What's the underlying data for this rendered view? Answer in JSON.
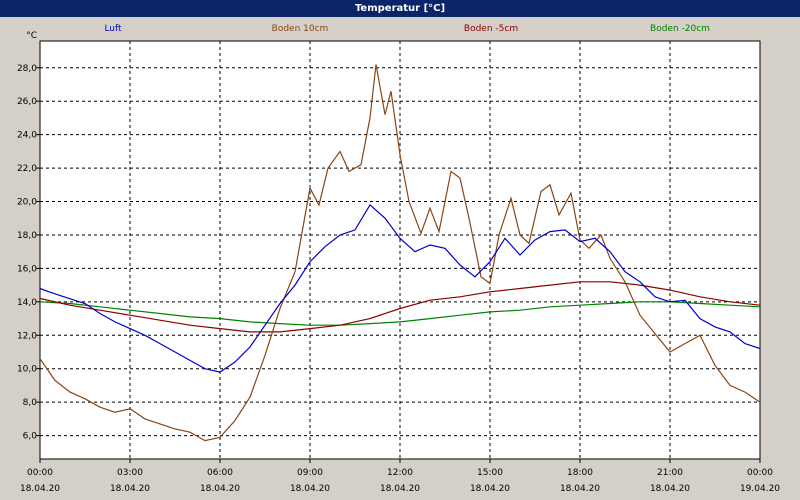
{
  "window": {
    "title": "Temperatur [°C]"
  },
  "chart_data": {
    "type": "line",
    "title": "Temperatur [°C]",
    "ylabel": "°C",
    "xlabel": "",
    "ylim": [
      4.6,
      29.6
    ],
    "xlim": [
      0,
      24
    ],
    "grid": true,
    "legend_position": "top",
    "y_ticks": [
      "6,0",
      "8,0",
      "10,0",
      "12,0",
      "14,0",
      "16,0",
      "18,0",
      "20,0",
      "22,0",
      "24,0",
      "26,0",
      "28,0"
    ],
    "x_ticks": [
      {
        "time": "00:00",
        "date": "18.04.20"
      },
      {
        "time": "03:00",
        "date": "18.04.20"
      },
      {
        "time": "06:00",
        "date": "18.04.20"
      },
      {
        "time": "09:00",
        "date": "18.04.20"
      },
      {
        "time": "12:00",
        "date": "18.04.20"
      },
      {
        "time": "15:00",
        "date": "18.04.20"
      },
      {
        "time": "18:00",
        "date": "18.04.20"
      },
      {
        "time": "21:00",
        "date": "18.04.20"
      },
      {
        "time": "00:00",
        "date": "19.04.20"
      }
    ],
    "series": [
      {
        "name": "Luft",
        "color": "#0000cc",
        "points": [
          [
            0,
            14.8
          ],
          [
            0.3,
            14.6
          ],
          [
            0.8,
            14.3
          ],
          [
            1.5,
            13.9
          ],
          [
            2,
            13.3
          ],
          [
            2.5,
            12.8
          ],
          [
            3,
            12.4
          ],
          [
            3.5,
            12.0
          ],
          [
            4,
            11.5
          ],
          [
            4.5,
            11.0
          ],
          [
            5,
            10.5
          ],
          [
            5.5,
            10.0
          ],
          [
            6,
            9.8
          ],
          [
            6.5,
            10.4
          ],
          [
            7,
            11.3
          ],
          [
            7.5,
            12.6
          ],
          [
            8,
            13.9
          ],
          [
            8.5,
            15.0
          ],
          [
            9,
            16.4
          ],
          [
            9.5,
            17.3
          ],
          [
            10,
            18.0
          ],
          [
            10.5,
            18.3
          ],
          [
            11,
            19.8
          ],
          [
            11.5,
            19.0
          ],
          [
            12,
            17.8
          ],
          [
            12.5,
            17.0
          ],
          [
            13,
            17.4
          ],
          [
            13.5,
            17.2
          ],
          [
            14,
            16.2
          ],
          [
            14.5,
            15.5
          ],
          [
            15,
            16.4
          ],
          [
            15.5,
            17.8
          ],
          [
            16,
            16.8
          ],
          [
            16.5,
            17.7
          ],
          [
            17,
            18.2
          ],
          [
            17.5,
            18.3
          ],
          [
            18,
            17.6
          ],
          [
            18.5,
            17.8
          ],
          [
            19,
            17.0
          ],
          [
            19.5,
            15.8
          ],
          [
            20,
            15.2
          ],
          [
            20.5,
            14.3
          ],
          [
            21,
            14.0
          ],
          [
            21.5,
            14.1
          ],
          [
            22,
            13.0
          ],
          [
            22.5,
            12.5
          ],
          [
            23,
            12.2
          ],
          [
            23.5,
            11.5
          ],
          [
            24,
            11.2
          ]
        ]
      },
      {
        "name": "Boden 10cm",
        "color": "#8b4513",
        "points": [
          [
            0,
            10.6
          ],
          [
            0.5,
            9.3
          ],
          [
            1,
            8.6
          ],
          [
            1.5,
            8.2
          ],
          [
            2,
            7.7
          ],
          [
            2.5,
            7.4
          ],
          [
            3,
            7.6
          ],
          [
            3.5,
            7.0
          ],
          [
            4,
            6.7
          ],
          [
            4.5,
            6.4
          ],
          [
            5,
            6.2
          ],
          [
            5.5,
            5.7
          ],
          [
            6,
            5.9
          ],
          [
            6.5,
            6.9
          ],
          [
            7,
            8.3
          ],
          [
            7.5,
            10.8
          ],
          [
            8,
            13.6
          ],
          [
            8.5,
            15.8
          ],
          [
            9,
            20.8
          ],
          [
            9.3,
            19.8
          ],
          [
            9.6,
            22.0
          ],
          [
            10,
            23.0
          ],
          [
            10.3,
            21.8
          ],
          [
            10.7,
            22.2
          ],
          [
            11,
            25.0
          ],
          [
            11.2,
            28.2
          ],
          [
            11.5,
            25.2
          ],
          [
            11.7,
            26.6
          ],
          [
            12,
            22.8
          ],
          [
            12.3,
            20.0
          ],
          [
            12.7,
            18.1
          ],
          [
            13,
            19.6
          ],
          [
            13.3,
            18.2
          ],
          [
            13.7,
            21.8
          ],
          [
            14,
            21.4
          ],
          [
            14.3,
            19.0
          ],
          [
            14.7,
            15.5
          ],
          [
            15,
            15.1
          ],
          [
            15.3,
            18.0
          ],
          [
            15.7,
            20.2
          ],
          [
            16,
            18.0
          ],
          [
            16.3,
            17.5
          ],
          [
            16.7,
            20.6
          ],
          [
            17,
            21.0
          ],
          [
            17.3,
            19.2
          ],
          [
            17.7,
            20.5
          ],
          [
            18,
            17.7
          ],
          [
            18.3,
            17.2
          ],
          [
            18.7,
            18.0
          ],
          [
            19,
            16.6
          ],
          [
            19.5,
            15.2
          ],
          [
            20,
            13.2
          ],
          [
            20.5,
            12.1
          ],
          [
            21,
            11.0
          ],
          [
            21.5,
            11.5
          ],
          [
            22,
            12.0
          ],
          [
            22.5,
            10.2
          ],
          [
            23,
            9.0
          ],
          [
            23.5,
            8.6
          ],
          [
            24,
            8.0
          ]
        ]
      },
      {
        "name": "Boden -5cm",
        "color": "#8b0000",
        "points": [
          [
            0,
            14.2
          ],
          [
            1,
            13.8
          ],
          [
            2,
            13.5
          ],
          [
            3,
            13.2
          ],
          [
            4,
            12.9
          ],
          [
            5,
            12.6
          ],
          [
            6,
            12.4
          ],
          [
            7,
            12.2
          ],
          [
            8,
            12.2
          ],
          [
            9,
            12.4
          ],
          [
            10,
            12.6
          ],
          [
            11,
            13.0
          ],
          [
            12,
            13.6
          ],
          [
            13,
            14.1
          ],
          [
            14,
            14.3
          ],
          [
            15,
            14.6
          ],
          [
            16,
            14.8
          ],
          [
            17,
            15.0
          ],
          [
            18,
            15.2
          ],
          [
            19,
            15.2
          ],
          [
            20,
            15.0
          ],
          [
            21,
            14.7
          ],
          [
            22,
            14.3
          ],
          [
            23,
            14.0
          ],
          [
            24,
            13.8
          ]
        ]
      },
      {
        "name": "Boden -20cm",
        "color": "#008000",
        "points": [
          [
            0,
            14.0
          ],
          [
            1,
            13.9
          ],
          [
            2,
            13.7
          ],
          [
            3,
            13.5
          ],
          [
            4,
            13.3
          ],
          [
            5,
            13.1
          ],
          [
            6,
            13.0
          ],
          [
            7,
            12.8
          ],
          [
            8,
            12.7
          ],
          [
            9,
            12.6
          ],
          [
            10,
            12.6
          ],
          [
            11,
            12.7
          ],
          [
            12,
            12.8
          ],
          [
            13,
            13.0
          ],
          [
            14,
            13.2
          ],
          [
            15,
            13.4
          ],
          [
            16,
            13.5
          ],
          [
            17,
            13.7
          ],
          [
            18,
            13.8
          ],
          [
            19,
            13.9
          ],
          [
            20,
            14.0
          ],
          [
            21,
            14.0
          ],
          [
            22,
            13.9
          ],
          [
            23,
            13.8
          ],
          [
            24,
            13.7
          ]
        ]
      }
    ]
  }
}
